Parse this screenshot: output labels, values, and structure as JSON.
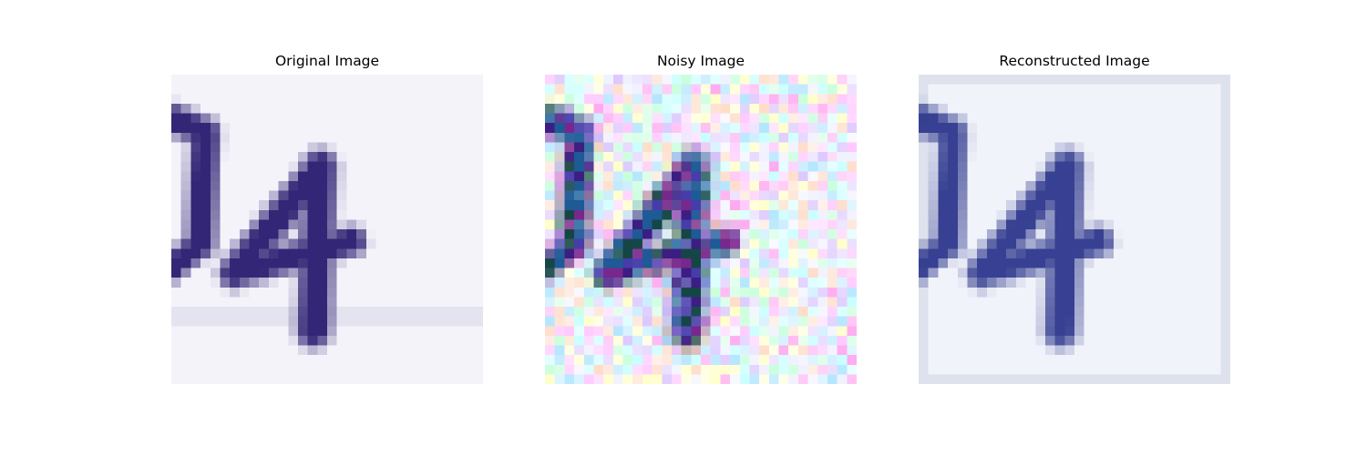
{
  "panels": [
    {
      "title": "Original Image"
    },
    {
      "title": "Noisy Image"
    },
    {
      "title": "Reconstructed Image"
    }
  ]
}
